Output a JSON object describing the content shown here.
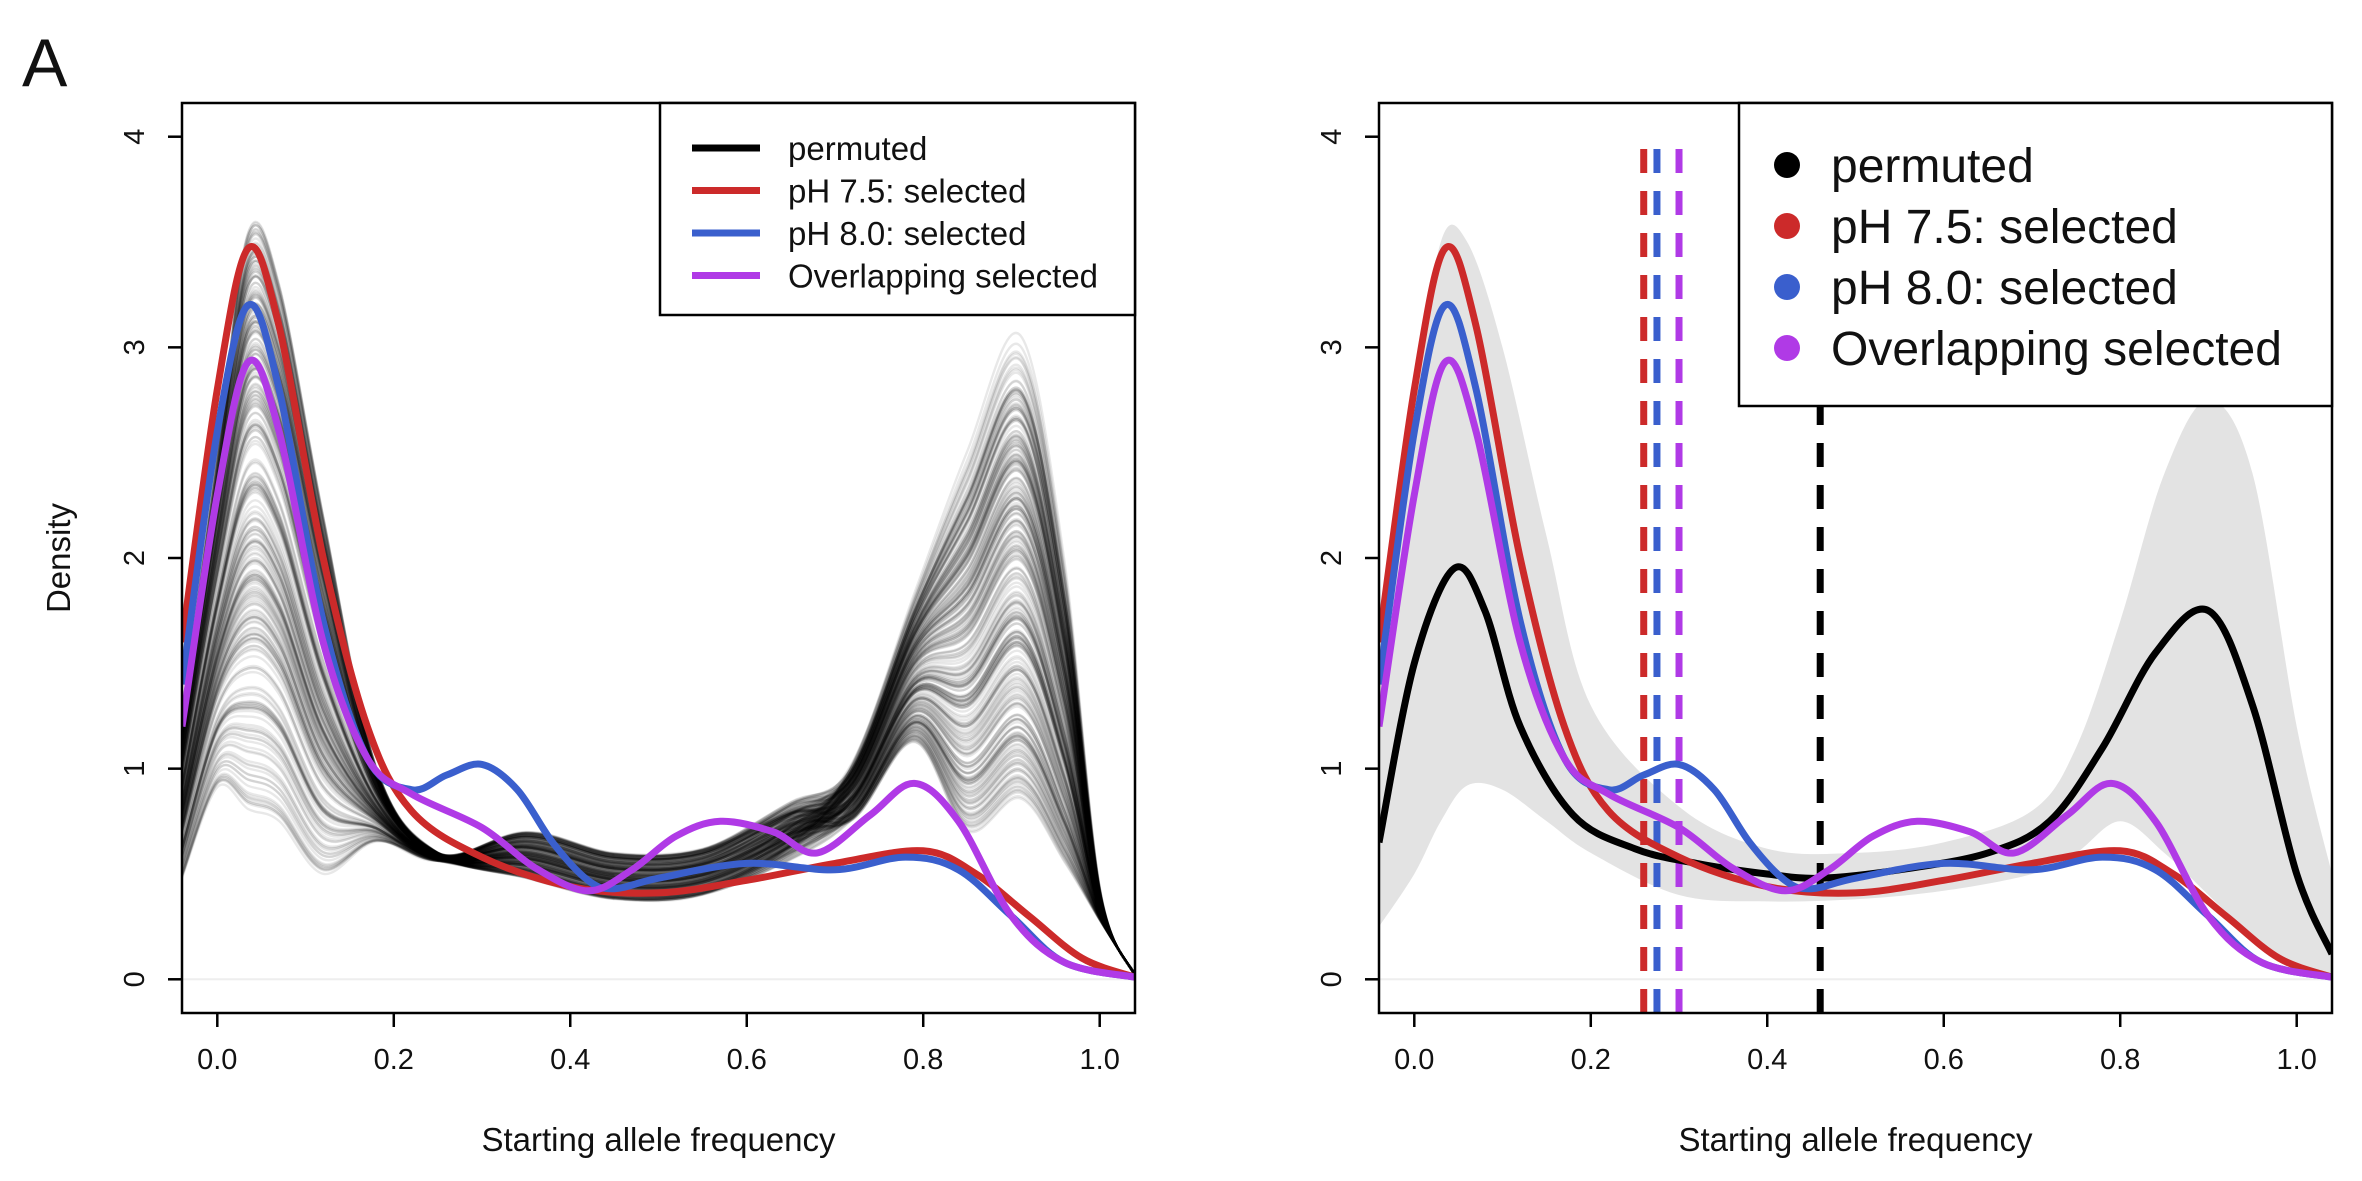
{
  "panel_label": "A",
  "colors": {
    "permuted": "#000000",
    "ph75": "#cc2a2a",
    "ph80": "#3a5fcd",
    "overlap": "#b03ae6",
    "band": "#e3e3e3"
  },
  "chart_data": [
    {
      "type": "line",
      "xlabel": "Starting allele frequency",
      "ylabel": "Density",
      "xlim": [
        -0.04,
        1.04
      ],
      "ylim": [
        -0.16,
        4.16
      ],
      "xticks": [
        "0.0",
        "0.2",
        "0.4",
        "0.6",
        "0.8",
        "1.0"
      ],
      "yticks": [
        "0",
        "1",
        "2",
        "3",
        "4"
      ],
      "grid": false,
      "legend_position": "top-right",
      "legend": [
        {
          "label": "permuted",
          "color": "#000000",
          "marker": "line"
        },
        {
          "label": "pH 7.5: selected",
          "color": "#cc2a2a",
          "marker": "line"
        },
        {
          "label": "pH 8.0: selected",
          "color": "#3a5fcd",
          "marker": "line"
        },
        {
          "label": "Overlapping selected",
          "color": "#b03ae6",
          "marker": "line"
        }
      ],
      "permutation_draws": 300,
      "permutation_peak1_range": [
        0.8,
        3.55
      ],
      "permutation_peak2_range": [
        0.8,
        2.9
      ],
      "series": [
        {
          "name": "pH 7.5: selected",
          "color": "#cc2a2a",
          "x": [
            -0.04,
            0.0,
            0.035,
            0.07,
            0.12,
            0.17,
            0.22,
            0.3,
            0.4,
            0.5,
            0.6,
            0.7,
            0.8,
            0.86,
            0.92,
            0.98,
            1.04
          ],
          "y": [
            1.6,
            2.8,
            3.47,
            3.1,
            2.0,
            1.2,
            0.8,
            0.58,
            0.44,
            0.41,
            0.47,
            0.55,
            0.61,
            0.5,
            0.3,
            0.1,
            0.01
          ]
        },
        {
          "name": "pH 8.0: selected",
          "color": "#3a5fcd",
          "x": [
            -0.04,
            0.0,
            0.035,
            0.07,
            0.12,
            0.17,
            0.22,
            0.26,
            0.3,
            0.34,
            0.38,
            0.42,
            0.45,
            0.5,
            0.6,
            0.7,
            0.78,
            0.84,
            0.9,
            0.96,
            1.04
          ],
          "y": [
            1.4,
            2.6,
            3.2,
            2.8,
            1.7,
            1.05,
            0.9,
            0.97,
            1.02,
            0.9,
            0.65,
            0.47,
            0.43,
            0.48,
            0.55,
            0.52,
            0.58,
            0.52,
            0.3,
            0.08,
            0.01
          ]
        },
        {
          "name": "Overlapping selected",
          "color": "#b03ae6",
          "x": [
            -0.04,
            0.0,
            0.035,
            0.07,
            0.12,
            0.17,
            0.22,
            0.3,
            0.36,
            0.42,
            0.47,
            0.52,
            0.57,
            0.63,
            0.68,
            0.74,
            0.79,
            0.84,
            0.9,
            0.96,
            1.04
          ],
          "y": [
            1.2,
            2.3,
            2.93,
            2.6,
            1.6,
            1.05,
            0.88,
            0.72,
            0.53,
            0.42,
            0.52,
            0.68,
            0.75,
            0.7,
            0.6,
            0.78,
            0.93,
            0.75,
            0.3,
            0.08,
            0.01
          ]
        }
      ]
    },
    {
      "type": "line",
      "xlabel": "Starting allele frequency",
      "ylabel": "",
      "xlim": [
        -0.04,
        1.04
      ],
      "ylim": [
        -0.16,
        4.16
      ],
      "xticks": [
        "0.0",
        "0.2",
        "0.4",
        "0.6",
        "0.8",
        "1.0"
      ],
      "yticks": [
        "0",
        "1",
        "2",
        "3",
        "4"
      ],
      "grid": false,
      "legend_position": "top-right",
      "legend": [
        {
          "label": "permuted",
          "color": "#000000",
          "marker": "dot"
        },
        {
          "label": "pH 7.5: selected",
          "color": "#cc2a2a",
          "marker": "dot"
        },
        {
          "label": "pH 8.0: selected",
          "color": "#3a5fcd",
          "marker": "dot"
        },
        {
          "label": "Overlapping selected",
          "color": "#b03ae6",
          "marker": "dot"
        }
      ],
      "band": {
        "color": "#e3e3e3",
        "x": [
          -0.04,
          0.0,
          0.03,
          0.06,
          0.1,
          0.15,
          0.2,
          0.3,
          0.4,
          0.5,
          0.6,
          0.7,
          0.75,
          0.8,
          0.85,
          0.9,
          0.95,
          1.0,
          1.04
        ],
        "lower": [
          0.25,
          0.5,
          0.75,
          0.92,
          0.9,
          0.75,
          0.6,
          0.4,
          0.37,
          0.38,
          0.42,
          0.5,
          0.6,
          0.75,
          0.6,
          0.4,
          0.2,
          0.05,
          0.0
        ],
        "upper": [
          1.4,
          2.7,
          3.5,
          3.5,
          3.0,
          2.1,
          1.3,
          0.82,
          0.62,
          0.6,
          0.65,
          0.8,
          1.1,
          1.7,
          2.4,
          2.75,
          2.4,
          1.2,
          0.5
        ]
      },
      "vlines": [
        {
          "x": 0.26,
          "color": "#cc2a2a",
          "style": "dashed"
        },
        {
          "x": 0.275,
          "color": "#3a5fcd",
          "style": "dashed"
        },
        {
          "x": 0.3,
          "color": "#b03ae6",
          "style": "dashed"
        },
        {
          "x": 0.46,
          "color": "#000000",
          "style": "dashed"
        }
      ],
      "series": [
        {
          "name": "permuted",
          "color": "#000000",
          "x": [
            -0.04,
            0.0,
            0.045,
            0.08,
            0.12,
            0.18,
            0.25,
            0.32,
            0.4,
            0.46,
            0.55,
            0.65,
            0.72,
            0.78,
            0.84,
            0.9,
            0.95,
            1.0,
            1.04
          ],
          "y": [
            0.65,
            1.5,
            1.95,
            1.75,
            1.2,
            0.78,
            0.62,
            0.55,
            0.5,
            0.48,
            0.52,
            0.6,
            0.75,
            1.1,
            1.55,
            1.75,
            1.3,
            0.5,
            0.12
          ]
        },
        {
          "name": "pH 7.5: selected",
          "color": "#cc2a2a",
          "x": [
            -0.04,
            0.0,
            0.035,
            0.07,
            0.12,
            0.17,
            0.22,
            0.3,
            0.4,
            0.5,
            0.6,
            0.7,
            0.8,
            0.86,
            0.92,
            0.98,
            1.04
          ],
          "y": [
            1.6,
            2.8,
            3.47,
            3.1,
            2.0,
            1.2,
            0.8,
            0.58,
            0.44,
            0.41,
            0.47,
            0.55,
            0.61,
            0.5,
            0.3,
            0.1,
            0.01
          ]
        },
        {
          "name": "pH 8.0: selected",
          "color": "#3a5fcd",
          "x": [
            -0.04,
            0.0,
            0.035,
            0.07,
            0.12,
            0.17,
            0.22,
            0.26,
            0.3,
            0.34,
            0.38,
            0.42,
            0.45,
            0.5,
            0.6,
            0.7,
            0.78,
            0.84,
            0.9,
            0.96,
            1.04
          ],
          "y": [
            1.4,
            2.6,
            3.2,
            2.8,
            1.7,
            1.05,
            0.9,
            0.97,
            1.02,
            0.9,
            0.65,
            0.47,
            0.43,
            0.48,
            0.55,
            0.52,
            0.58,
            0.52,
            0.3,
            0.08,
            0.01
          ]
        },
        {
          "name": "Overlapping selected",
          "color": "#b03ae6",
          "x": [
            -0.04,
            0.0,
            0.035,
            0.07,
            0.12,
            0.17,
            0.22,
            0.3,
            0.36,
            0.42,
            0.47,
            0.52,
            0.57,
            0.63,
            0.68,
            0.74,
            0.79,
            0.84,
            0.9,
            0.96,
            1.04
          ],
          "y": [
            1.2,
            2.3,
            2.93,
            2.6,
            1.6,
            1.05,
            0.88,
            0.72,
            0.53,
            0.42,
            0.52,
            0.68,
            0.75,
            0.7,
            0.6,
            0.78,
            0.93,
            0.75,
            0.3,
            0.08,
            0.01
          ]
        }
      ]
    }
  ]
}
